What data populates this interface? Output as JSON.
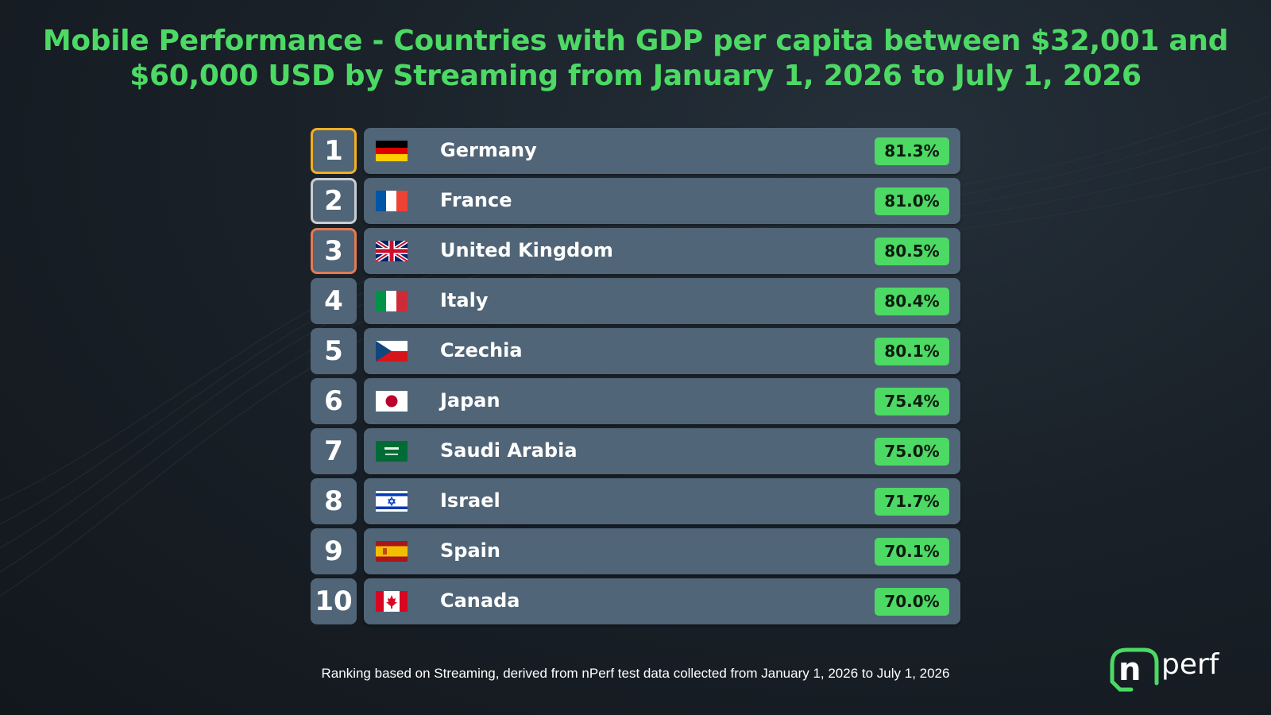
{
  "title": "Mobile Performance - Countries with GDP per capita between $32,001 and $60,000 USD by Streaming from January 1, 2026 to July 1, 2026",
  "title_lines": [
    "Mobile Performance - Countries with GDP per capita between $32,001 and",
    "$60,000 USD by Streaming from January 1, 2026 to July 1, 2026"
  ],
  "colors": {
    "accent": "#4cd964",
    "bar": "#506577",
    "gold": "#f2b01e",
    "silver": "#c9cdd1",
    "bronze": "#e27a55"
  },
  "chart_data": {
    "type": "table",
    "title": "Mobile Performance - Countries with GDP per capita between $32,001 and $60,000 USD by Streaming from January 1, 2026 to July 1, 2026",
    "columns": [
      "rank",
      "flag",
      "country",
      "value"
    ],
    "rows": [
      {
        "rank": "1",
        "flag": "de",
        "country": "Germany",
        "value": 81.3,
        "label": "81.3%"
      },
      {
        "rank": "2",
        "flag": "fr",
        "country": "France",
        "value": 81.0,
        "label": "81.0%"
      },
      {
        "rank": "3",
        "flag": "gb",
        "country": "United Kingdom",
        "value": 80.5,
        "label": "80.5%"
      },
      {
        "rank": "4",
        "flag": "it",
        "country": "Italy",
        "value": 80.4,
        "label": "80.4%"
      },
      {
        "rank": "5",
        "flag": "cz",
        "country": "Czechia",
        "value": 80.1,
        "label": "80.1%"
      },
      {
        "rank": "6",
        "flag": "jp",
        "country": "Japan",
        "value": 75.4,
        "label": "75.4%"
      },
      {
        "rank": "7",
        "flag": "sa",
        "country": "Saudi Arabia",
        "value": 75.0,
        "label": "75.0%"
      },
      {
        "rank": "8",
        "flag": "il",
        "country": "Israel",
        "value": 71.7,
        "label": "71.7%"
      },
      {
        "rank": "9",
        "flag": "es",
        "country": "Spain",
        "value": 70.1,
        "label": "70.1%"
      },
      {
        "rank": "10",
        "flag": "ca",
        "country": "Canada",
        "value": 70.0,
        "label": "70.0%"
      }
    ]
  },
  "footnote": "Ranking based on Streaming, derived from nPerf test data collected from January 1, 2026 to July 1, 2026",
  "logo": {
    "text": "nperf",
    "icon": "nperf-logo"
  }
}
